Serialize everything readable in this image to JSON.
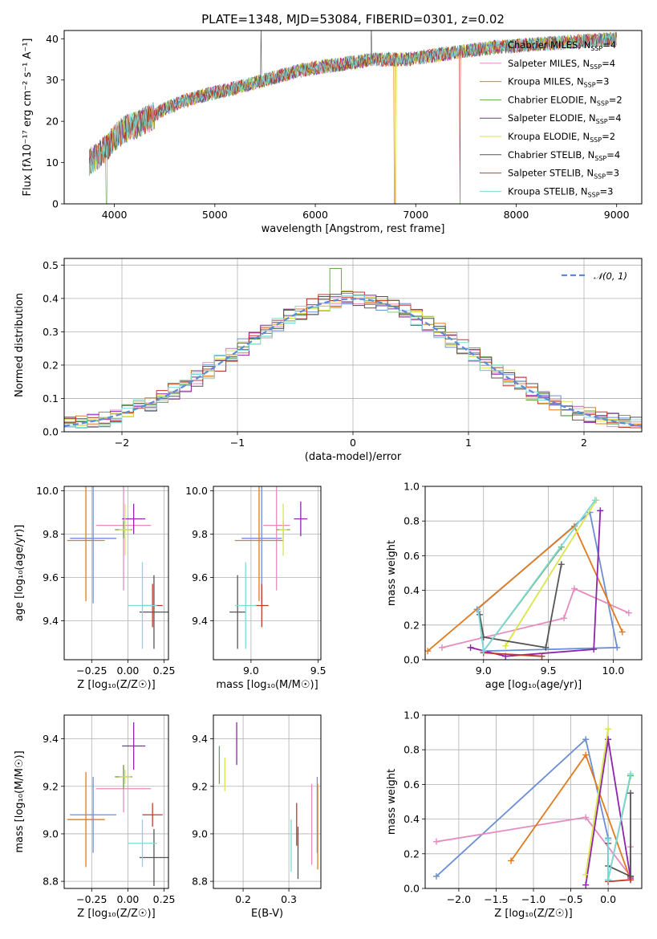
{
  "figure": {
    "title": "PLATE=1348, MJD=53084, FIBERID=0301, z=0.02"
  },
  "models": [
    {
      "name": "Chabrier MILES",
      "nssp": "4",
      "color": "#6b8fd6"
    },
    {
      "name": "Salpeter MILES",
      "nssp": "4",
      "color": "#e58bc1"
    },
    {
      "name": "Kroupa MILES",
      "nssp": "3",
      "color": "#e07b1f"
    },
    {
      "name": "Chabrier ELODIE",
      "nssp": "2",
      "color": "#6aa84f"
    },
    {
      "name": "Salpeter ELODIE",
      "nssp": "4",
      "color": "#8e24aa"
    },
    {
      "name": "Kroupa ELODIE",
      "nssp": "2",
      "color": "#d9e54a"
    },
    {
      "name": "Chabrier STELIB",
      "nssp": "4",
      "color": "#555555"
    },
    {
      "name": "Salpeter STELIB",
      "nssp": "3",
      "color": "#c0392b"
    },
    {
      "name": "Kroupa STELIB",
      "nssp": "3",
      "color": "#7fd9d9"
    }
  ],
  "legend_suffix": "N",
  "legend_sub": "SSP",
  "chart_data": [
    {
      "id": "spectrum",
      "type": "line",
      "xlabel": "wavelength [Angstrom, rest frame]",
      "ylabel": "Flux [fλ10⁻¹⁷ erg cm⁻² s⁻¹ A⁻¹]",
      "xlim": [
        3500,
        9250
      ],
      "ylim": [
        0,
        42
      ],
      "xticks": [
        4000,
        5000,
        6000,
        7000,
        8000,
        9000
      ],
      "yticks": [
        0,
        10,
        20,
        30,
        40
      ],
      "continuum": {
        "x": [
          3750,
          3800,
          3900,
          4000,
          4100,
          4200,
          4300,
          4500,
          4700,
          5000,
          5200,
          5500,
          5800,
          6000,
          6300,
          6600,
          6900,
          7200,
          7500,
          7800,
          8100,
          8400,
          8700,
          9000
        ],
        "y": [
          10,
          11,
          13,
          16,
          18,
          19,
          20,
          23,
          25,
          27,
          28,
          30,
          32,
          33,
          34,
          35,
          35,
          36,
          37,
          38,
          38.5,
          39,
          39.5,
          40
        ]
      },
      "dropouts": [
        {
          "color": "#c0392b",
          "x": 7440
        },
        {
          "color": "#d9e54a",
          "x": 6800
        },
        {
          "color": "#e07b1f",
          "x": 6790
        },
        {
          "color": "#6aa84f",
          "x": 3920
        }
      ]
    },
    {
      "id": "residual-distribution",
      "type": "step",
      "xlabel": "(data-model)/error",
      "ylabel": "Normed distribution",
      "xlim": [
        -2.5,
        2.5
      ],
      "ylim": [
        0,
        0.52
      ],
      "xticks": [
        -2,
        -1,
        0,
        1,
        2
      ],
      "yticks": [
        0.0,
        0.1,
        0.2,
        0.3,
        0.4,
        0.5
      ],
      "reference": {
        "name": "𝒩(0, 1)",
        "color": "#5b8ad8"
      },
      "bin_edges_start": -2.5,
      "bin_width": 0.1
    },
    {
      "id": "age-vs-Z",
      "type": "errorbar",
      "xlabel": "Z [log₁₀(Z/Z☉)]",
      "ylabel": "age  [log₁₀(age/yr)]",
      "xlim": [
        -0.44,
        0.28
      ],
      "ylim": [
        9.22,
        10.02
      ],
      "xticks": [
        -0.25,
        0.0,
        0.25
      ],
      "yticks": [
        9.4,
        9.6,
        9.8,
        10.0
      ],
      "points": [
        {
          "model": 0,
          "x": -0.24,
          "y": 9.78,
          "xerr": 0.16,
          "yerr": 0.3
        },
        {
          "model": 1,
          "x": -0.03,
          "y": 9.84,
          "xerr": 0.19,
          "yerr": 0.3
        },
        {
          "model": 2,
          "x": -0.29,
          "y": 9.77,
          "xerr": 0.13,
          "yerr": 0.28
        },
        {
          "model": 3,
          "x": -0.03,
          "y": 9.82,
          "xerr": 0.06,
          "yerr": 0.04
        },
        {
          "model": 4,
          "x": 0.04,
          "y": 9.87,
          "xerr": 0.08,
          "yerr": 0.07
        },
        {
          "model": 5,
          "x": -0.02,
          "y": 9.82,
          "xerr": 0.04,
          "yerr": 0.12
        },
        {
          "model": 6,
          "x": 0.18,
          "y": 9.44,
          "xerr": 0.1,
          "yerr": 0.17
        },
        {
          "model": 7,
          "x": 0.17,
          "y": 9.47,
          "xerr": 0.07,
          "yerr": 0.1
        },
        {
          "model": 8,
          "x": 0.1,
          "y": 9.47,
          "xerr": 0.1,
          "yerr": 0.2
        }
      ]
    },
    {
      "id": "age-vs-mass",
      "type": "errorbar",
      "xlabel": "mass [log₁₀(M/M☉)]",
      "xlim": [
        8.72,
        9.52
      ],
      "ylim": [
        9.22,
        10.02
      ],
      "xticks": [
        9.0,
        9.5
      ],
      "yticks": [
        9.4,
        9.6,
        9.8,
        10.0
      ],
      "points": [
        {
          "model": 0,
          "x": 9.08,
          "y": 9.78,
          "xerr": 0.15,
          "yerr": 0.3
        },
        {
          "model": 1,
          "x": 9.19,
          "y": 9.84,
          "xerr": 0.1,
          "yerr": 0.3
        },
        {
          "model": 2,
          "x": 9.06,
          "y": 9.77,
          "xerr": 0.18,
          "yerr": 0.28
        },
        {
          "model": 3,
          "x": 9.24,
          "y": 9.82,
          "xerr": 0.05,
          "yerr": 0.04
        },
        {
          "model": 4,
          "x": 9.37,
          "y": 9.87,
          "xerr": 0.05,
          "yerr": 0.08
        },
        {
          "model": 5,
          "x": 9.24,
          "y": 9.82,
          "xerr": 0.03,
          "yerr": 0.12
        },
        {
          "model": 6,
          "x": 8.9,
          "y": 9.44,
          "xerr": 0.06,
          "yerr": 0.17
        },
        {
          "model": 7,
          "x": 9.08,
          "y": 9.47,
          "xerr": 0.05,
          "yerr": 0.1
        },
        {
          "model": 8,
          "x": 8.96,
          "y": 9.47,
          "xerr": 0.08,
          "yerr": 0.2
        }
      ]
    },
    {
      "id": "mass-weight-vs-age",
      "type": "line",
      "xlabel": "age  [log₁₀(age/yr)]",
      "ylabel": "mass weight",
      "xlim": [
        8.55,
        10.22
      ],
      "ylim": [
        0,
        1.0
      ],
      "xticks": [
        9.0,
        9.5,
        10.0
      ],
      "yticks": [
        0.0,
        0.2,
        0.4,
        0.6,
        0.8,
        1.0
      ],
      "series": [
        {
          "model": 0,
          "x": [
            8.95,
            9.82,
            10.03,
            9.0
          ],
          "y": [
            0.29,
            0.85,
            0.07,
            0.05
          ]
        },
        {
          "model": 1,
          "x": [
            8.68,
            9.62,
            9.7,
            10.12
          ],
          "y": [
            0.07,
            0.24,
            0.41,
            0.27
          ]
        },
        {
          "model": 2,
          "x": [
            8.57,
            9.7,
            10.07
          ],
          "y": [
            0.05,
            0.77,
            0.16
          ]
        },
        {
          "model": 3,
          "x": [
            9.0,
            9.6
          ],
          "y": [
            0.05,
            0.65
          ]
        },
        {
          "model": 4,
          "x": [
            8.9,
            9.17,
            9.85,
            9.9
          ],
          "y": [
            0.07,
            0.02,
            0.06,
            0.86
          ]
        },
        {
          "model": 5,
          "x": [
            9.17,
            9.87
          ],
          "y": [
            0.08,
            0.92
          ]
        },
        {
          "model": 6,
          "x": [
            8.97,
            9.0,
            9.48,
            9.6
          ],
          "y": [
            0.26,
            0.13,
            0.07,
            0.55
          ]
        },
        {
          "model": 7,
          "x": [
            9.0,
            9.45
          ],
          "y": [
            0.04,
            0.02
          ]
        },
        {
          "model": 8,
          "x": [
            8.96,
            9.0,
            9.86
          ],
          "y": [
            0.28,
            0.05,
            0.92
          ]
        }
      ]
    },
    {
      "id": "mass-vs-Z",
      "type": "errorbar",
      "xlabel": "Z [log₁₀(Z/Z☉)]",
      "ylabel": "mass [log₁₀(M/M☉)]",
      "xlim": [
        -0.44,
        0.28
      ],
      "ylim": [
        8.77,
        9.5
      ],
      "xticks": [
        -0.25,
        0.0,
        0.25
      ],
      "yticks": [
        8.8,
        9.0,
        9.2,
        9.4
      ],
      "points": [
        {
          "model": 0,
          "x": -0.24,
          "y": 9.08,
          "xerr": 0.16,
          "yerr": 0.16
        },
        {
          "model": 1,
          "x": -0.03,
          "y": 9.19,
          "xerr": 0.19,
          "yerr": 0.1
        },
        {
          "model": 2,
          "x": -0.29,
          "y": 9.06,
          "xerr": 0.13,
          "yerr": 0.2
        },
        {
          "model": 3,
          "x": -0.03,
          "y": 9.24,
          "xerr": 0.06,
          "yerr": 0.05
        },
        {
          "model": 4,
          "x": 0.04,
          "y": 9.37,
          "xerr": 0.08,
          "yerr": 0.1
        },
        {
          "model": 5,
          "x": -0.02,
          "y": 9.24,
          "xerr": 0.04,
          "yerr": 0.03
        },
        {
          "model": 6,
          "x": 0.18,
          "y": 8.9,
          "xerr": 0.1,
          "yerr": 0.12
        },
        {
          "model": 7,
          "x": 0.17,
          "y": 9.08,
          "xerr": 0.07,
          "yerr": 0.05
        },
        {
          "model": 8,
          "x": 0.1,
          "y": 8.96,
          "xerr": 0.1,
          "yerr": 0.1
        }
      ]
    },
    {
      "id": "mass-vs-EBV",
      "type": "errorbar",
      "xlabel": "E(B-V)",
      "xlim": [
        0.135,
        0.37
      ],
      "ylim": [
        8.77,
        9.5
      ],
      "xticks": [
        0.2,
        0.3
      ],
      "yticks": [
        8.8,
        9.0,
        9.2,
        9.4
      ],
      "points": [
        {
          "model": 0,
          "x": 0.362,
          "y": 9.08,
          "xerr": 0,
          "yerr": 0.16
        },
        {
          "model": 1,
          "x": 0.35,
          "y": 9.04,
          "xerr": 0,
          "yerr": 0.17
        },
        {
          "model": 2,
          "x": 0.363,
          "y": 9.03,
          "xerr": 0,
          "yerr": 0.18
        },
        {
          "model": 3,
          "x": 0.148,
          "y": 9.29,
          "xerr": 0,
          "yerr": 0.08
        },
        {
          "model": 4,
          "x": 0.186,
          "y": 9.38,
          "xerr": 0,
          "yerr": 0.09
        },
        {
          "model": 5,
          "x": 0.16,
          "y": 9.25,
          "xerr": 0,
          "yerr": 0.07
        },
        {
          "model": 6,
          "x": 0.32,
          "y": 8.92,
          "xerr": 0,
          "yerr": 0.11
        },
        {
          "model": 7,
          "x": 0.317,
          "y": 9.04,
          "xerr": 0,
          "yerr": 0.09
        },
        {
          "model": 8,
          "x": 0.305,
          "y": 8.95,
          "xerr": 0,
          "yerr": 0.11
        }
      ]
    },
    {
      "id": "mass-weight-vs-Z",
      "type": "line",
      "xlabel": "Z [log₁₀(Z/Z☉)]",
      "ylabel": "mass weight",
      "xlim": [
        -2.45,
        0.45
      ],
      "ylim": [
        0,
        1.0
      ],
      "xticks": [
        -2.0,
        -1.5,
        -1.0,
        -0.5,
        0.0
      ],
      "yticks": [
        0.0,
        0.2,
        0.4,
        0.6,
        0.8,
        1.0
      ],
      "series": [
        {
          "model": 0,
          "x": [
            -2.3,
            -0.3,
            0.0,
            0.0
          ],
          "y": [
            0.07,
            0.86,
            0.29,
            0.05
          ]
        },
        {
          "model": 1,
          "x": [
            -2.3,
            -0.3,
            0.3,
            0.3
          ],
          "y": [
            0.27,
            0.41,
            0.07,
            0.24
          ]
        },
        {
          "model": 2,
          "x": [
            -1.3,
            -0.3,
            0.3
          ],
          "y": [
            0.16,
            0.77,
            0.05
          ]
        },
        {
          "model": 3,
          "x": [
            0.0,
            0.3
          ],
          "y": [
            0.05,
            0.65
          ]
        },
        {
          "model": 4,
          "x": [
            -0.3,
            0.0,
            0.3,
            0.3
          ],
          "y": [
            0.02,
            0.86,
            0.06,
            0.07
          ]
        },
        {
          "model": 5,
          "x": [
            -0.3,
            0.0
          ],
          "y": [
            0.08,
            0.92
          ]
        },
        {
          "model": 6,
          "x": [
            0.0,
            0.0,
            0.3,
            0.3
          ],
          "y": [
            0.26,
            0.13,
            0.07,
            0.55
          ]
        },
        {
          "model": 7,
          "x": [
            0.0,
            0.3
          ],
          "y": [
            0.04,
            0.05
          ]
        },
        {
          "model": 8,
          "x": [
            0.0,
            0.0,
            0.3
          ],
          "y": [
            0.28,
            0.05,
            0.66
          ]
        }
      ]
    }
  ]
}
